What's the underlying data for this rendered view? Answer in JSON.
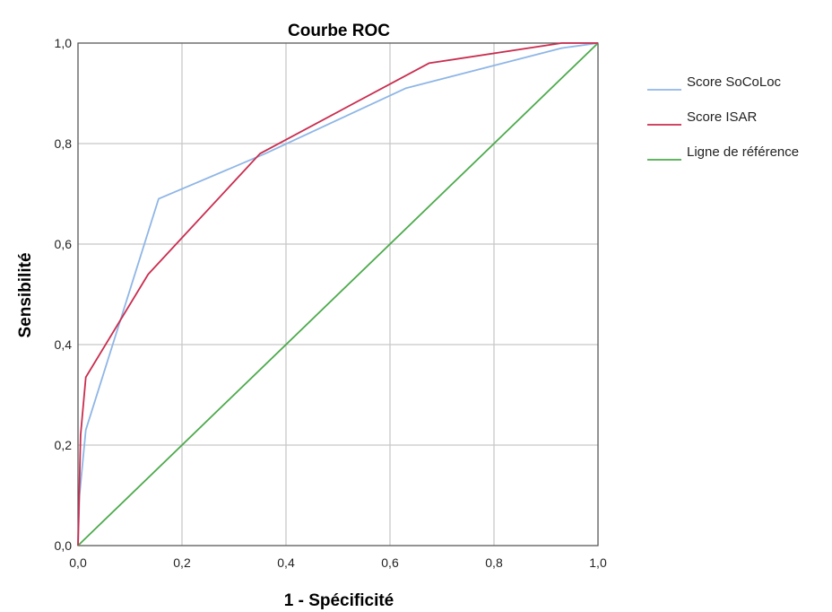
{
  "chart_data": {
    "type": "line",
    "title": "Courbe ROC",
    "xlabel": "1 - Spécificité",
    "ylabel": "Sensibilité",
    "xlim": [
      0,
      1
    ],
    "ylim": [
      0,
      1
    ],
    "xticks": [
      "0,0",
      "0,2",
      "0,4",
      "0,6",
      "0,8",
      "1,0"
    ],
    "yticks": [
      "0,0",
      "0,2",
      "0,4",
      "0,6",
      "0,8",
      "1,0"
    ],
    "grid": true,
    "legend_position": "right",
    "series": [
      {
        "name": "Score SoCoLoc",
        "color": "#8fb6e6",
        "x": [
          0.0,
          0.003,
          0.015,
          0.155,
          0.36,
          0.63,
          0.93,
          1.0
        ],
        "y": [
          0.0,
          0.1,
          0.23,
          0.69,
          0.78,
          0.91,
          0.99,
          1.0
        ]
      },
      {
        "name": "Score ISAR",
        "color": "#c92d4f",
        "x": [
          0.0,
          0.005,
          0.015,
          0.135,
          0.35,
          0.675,
          0.93,
          1.0
        ],
        "y": [
          0.0,
          0.22,
          0.335,
          0.54,
          0.78,
          0.96,
          1.0,
          1.0
        ]
      },
      {
        "name": "Ligne de référence",
        "color": "#4daa4d",
        "x": [
          0.0,
          1.0
        ],
        "y": [
          0.0,
          1.0
        ]
      }
    ]
  }
}
